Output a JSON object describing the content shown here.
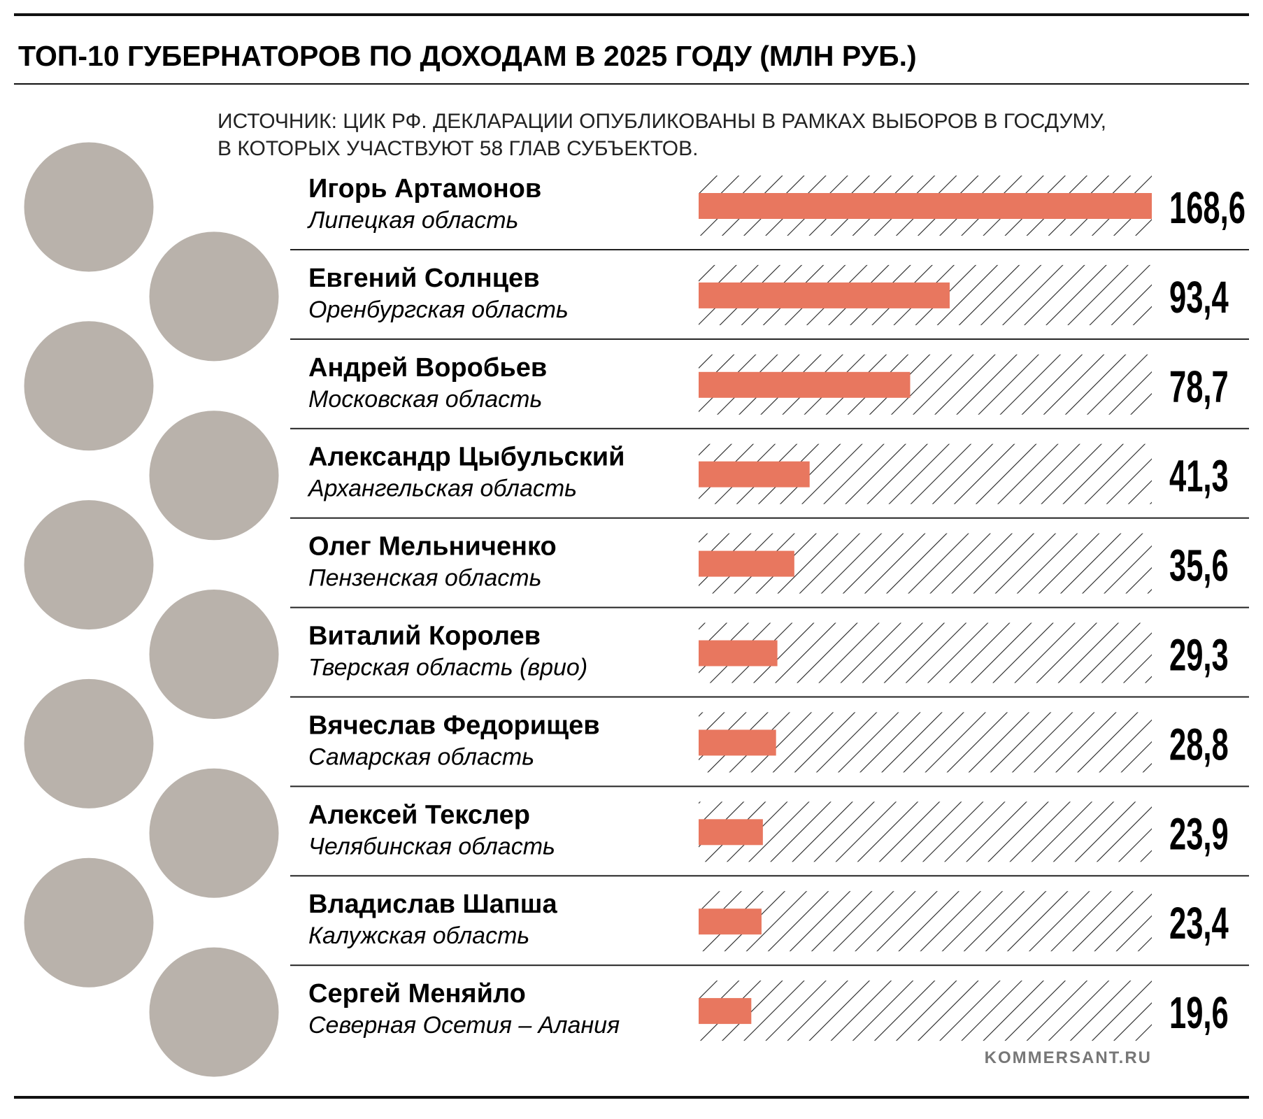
{
  "chart_data": {
    "type": "bar",
    "title": "ТОП-10 ГУБЕРНАТОРОВ ПО ДОХОДАМ В 2025 ГОДУ (МЛН РУБ.)",
    "subtitle": [
      "ИСТОЧНИК: ЦИК РФ. ДЕКЛАРАЦИИ ОПУБЛИКОВАНЫ В РАМКАХ ВЫБОРОВ В ГОСДУМУ,",
      "В КОТОРЫХ УЧАСТВУЮТ 58 ГЛАВ СУБЪЕКТОВ."
    ],
    "categories": [
      "Игорь Артамонов",
      "Евгений Солнцев",
      "Андрей Воробьев",
      "Александр Цыбульский",
      "Олег Мельниченко",
      "Виталий Королев",
      "Вячеслав Федорищев",
      "Алексей Текслер",
      "Владислав Шапша",
      "Сергей Меняйло"
    ],
    "regions": [
      "Липецкая область",
      "Оренбургская область",
      "Московская область",
      "Архангельская область",
      "Пензенская область",
      "Тверская область (врио)",
      "Самарская область",
      "Челябинская область",
      "Калужская область",
      "Северная Осетия – Алания"
    ],
    "values": [
      168.6,
      93.4,
      78.7,
      41.3,
      35.6,
      29.3,
      28.8,
      23.9,
      23.4,
      19.6
    ],
    "value_labels": [
      "168,6",
      "93,4",
      "78,7",
      "41,3",
      "35,6",
      "29,3",
      "28,8",
      "23,9",
      "23,4",
      "19,6"
    ],
    "color": "#e8775f",
    "credit": "KOMMERSANT.RU"
  }
}
